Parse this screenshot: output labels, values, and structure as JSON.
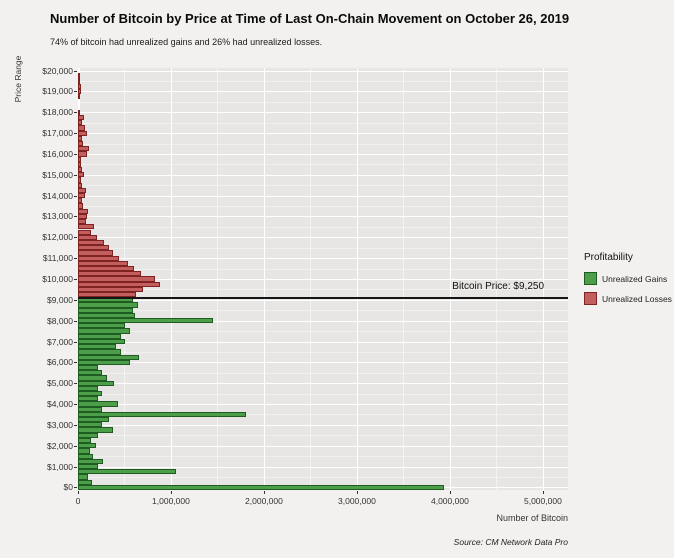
{
  "title": "Number of Bitcoin by Price at Time of Last On-Chain Movement on October 26, 2019",
  "subtitle": "74% of bitcoin had unrealized gains and 26% had unrealized losses.",
  "source": "Source: CM Network Data Pro",
  "legend": {
    "title": "Profitability",
    "items": [
      {
        "label": "Unrealized Gains",
        "fill": "#4d9e49",
        "border": "#1f5c21"
      },
      {
        "label": "Unrealized Losses",
        "fill": "#c25e5e",
        "border": "#7e2222"
      }
    ]
  },
  "colors": {
    "panel_background": "#e7e6e5",
    "page_background": "#f2f1ef",
    "gridline": "#ffffff",
    "price_line": "#151515"
  },
  "chart_data": {
    "type": "bar",
    "orientation": "horizontal",
    "title": "Number of Bitcoin by Price at Time of Last On-Chain Movement on October 26, 2019",
    "xlabel": "Number of Bitcoin",
    "ylabel": "Price Range",
    "xlim": [
      0,
      5000000
    ],
    "ylim": [
      0,
      20000
    ],
    "bin_size": 250,
    "grid": true,
    "legend_position": "right",
    "price_line": {
      "value": 9250,
      "label": "Bitcoin Price: $9,250"
    },
    "x_ticks": [
      {
        "value": 0,
        "label": "0"
      },
      {
        "value": 1000000,
        "label": "1,000,000"
      },
      {
        "value": 2000000,
        "label": "2,000,000"
      },
      {
        "value": 3000000,
        "label": "3,000,000"
      },
      {
        "value": 4000000,
        "label": "4,000,000"
      },
      {
        "value": 5000000,
        "label": "5,000,000"
      }
    ],
    "y_ticks": [
      {
        "value": 20000,
        "label": "$20,000"
      },
      {
        "value": 19000,
        "label": "$19,000"
      },
      {
        "value": 18000,
        "label": "$18,000"
      },
      {
        "value": 17000,
        "label": "$17,000"
      },
      {
        "value": 16000,
        "label": "$16,000"
      },
      {
        "value": 15000,
        "label": "$15,000"
      },
      {
        "value": 14000,
        "label": "$14,000"
      },
      {
        "value": 13000,
        "label": "$13,000"
      },
      {
        "value": 12000,
        "label": "$12,000"
      },
      {
        "value": 11000,
        "label": "$11,000"
      },
      {
        "value": 10000,
        "label": "$10,000"
      },
      {
        "value": 9000,
        "label": "$9,000"
      },
      {
        "value": 8000,
        "label": "$8,000"
      },
      {
        "value": 7000,
        "label": "$7,000"
      },
      {
        "value": 6000,
        "label": "$6,000"
      },
      {
        "value": 5000,
        "label": "$5,000"
      },
      {
        "value": 4000,
        "label": "$4,000"
      },
      {
        "value": 3000,
        "label": "$3,000"
      },
      {
        "value": 2000,
        "label": "$2,000"
      },
      {
        "value": 1000,
        "label": "$1,000"
      },
      {
        "value": 0,
        "label": "$0"
      }
    ],
    "bars_format": [
      "price_usd",
      "btc"
    ],
    "bars": [
      [
        0,
        3940000
      ],
      [
        250,
        150000
      ],
      [
        500,
        110000
      ],
      [
        750,
        1050000
      ],
      [
        1000,
        210000
      ],
      [
        1250,
        270000
      ],
      [
        1500,
        160000
      ],
      [
        1750,
        130000
      ],
      [
        2000,
        190000
      ],
      [
        2250,
        140000
      ],
      [
        2500,
        210000
      ],
      [
        2750,
        380000
      ],
      [
        3000,
        260000
      ],
      [
        3250,
        330000
      ],
      [
        3500,
        1810000
      ],
      [
        3750,
        260000
      ],
      [
        4000,
        430000
      ],
      [
        4250,
        210000
      ],
      [
        4500,
        260000
      ],
      [
        4750,
        210000
      ],
      [
        5000,
        390000
      ],
      [
        5250,
        310000
      ],
      [
        5500,
        260000
      ],
      [
        5750,
        210000
      ],
      [
        6000,
        560000
      ],
      [
        6250,
        660000
      ],
      [
        6500,
        460000
      ],
      [
        6750,
        410000
      ],
      [
        7000,
        510000
      ],
      [
        7250,
        460000
      ],
      [
        7500,
        560000
      ],
      [
        7750,
        510000
      ],
      [
        8000,
        1450000
      ],
      [
        8250,
        610000
      ],
      [
        8500,
        590000
      ],
      [
        8750,
        640000
      ],
      [
        9000,
        590000
      ],
      [
        9250,
        620000
      ],
      [
        9500,
        700000
      ],
      [
        9750,
        880000
      ],
      [
        10000,
        830000
      ],
      [
        10250,
        680000
      ],
      [
        10500,
        600000
      ],
      [
        10750,
        540000
      ],
      [
        11000,
        440000
      ],
      [
        11250,
        380000
      ],
      [
        11500,
        330000
      ],
      [
        11750,
        280000
      ],
      [
        12000,
        200000
      ],
      [
        12250,
        140000
      ],
      [
        12500,
        170000
      ],
      [
        12750,
        90000
      ],
      [
        13000,
        100000
      ],
      [
        13250,
        110000
      ],
      [
        13500,
        50000
      ],
      [
        13750,
        40000
      ],
      [
        14000,
        70000
      ],
      [
        14250,
        90000
      ],
      [
        14500,
        40000
      ],
      [
        14750,
        30000
      ],
      [
        15000,
        60000
      ],
      [
        15250,
        40000
      ],
      [
        15500,
        30000
      ],
      [
        15750,
        35000
      ],
      [
        16000,
        100000
      ],
      [
        16250,
        120000
      ],
      [
        16500,
        50000
      ],
      [
        16750,
        40000
      ],
      [
        17000,
        100000
      ],
      [
        17250,
        80000
      ],
      [
        17500,
        40000
      ],
      [
        17750,
        60000
      ],
      [
        18000,
        10000
      ],
      [
        18250,
        0
      ],
      [
        18500,
        0
      ],
      [
        18750,
        20000
      ],
      [
        19000,
        30000
      ],
      [
        19250,
        35000
      ],
      [
        19500,
        25000
      ],
      [
        19750,
        10000
      ],
      [
        20000,
        0
      ]
    ]
  }
}
